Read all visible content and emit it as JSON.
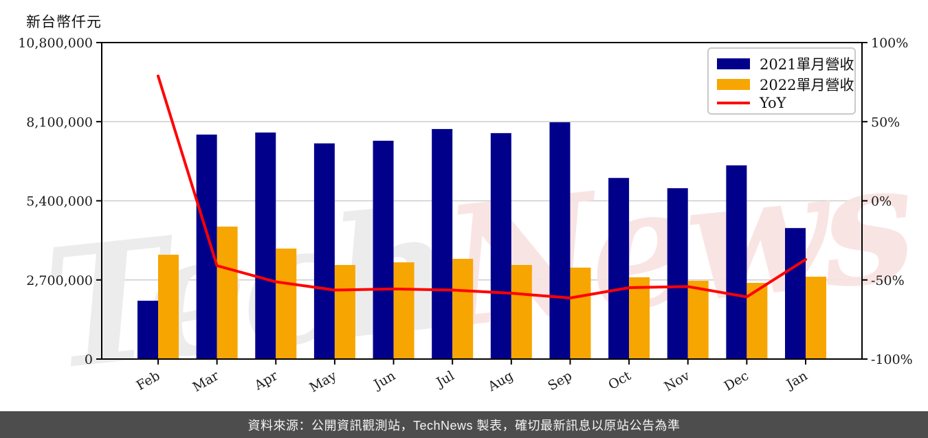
{
  "title": "新台幣仟元",
  "legend": {
    "items": [
      {
        "label": "2021單月營收",
        "color": "#00008B",
        "swatch": "rect"
      },
      {
        "label": "2022單月營收",
        "color": "#F7A500",
        "swatch": "rect"
      },
      {
        "label": "YoY",
        "color": "#FF0000",
        "swatch": "line"
      }
    ]
  },
  "watermark": {
    "part1": "Tech",
    "part2": "News",
    "color1": "#ECECEC",
    "color2": "#F9E3E3"
  },
  "footer": {
    "text": "資料來源：公開資訊觀測站，TechNews 製表，確切最新訊息以原站公告為準"
  },
  "chart_data": {
    "type": "bar+line",
    "categories": [
      "Feb",
      "Mar",
      "Apr",
      "May",
      "Jun",
      "Jul",
      "Aug",
      "Sep",
      "Oct",
      "Nov",
      "Dec",
      "Jan"
    ],
    "series": [
      {
        "name": "2021單月營收",
        "type": "bar",
        "axis": "left",
        "color": "#00008B",
        "values": [
          1990000,
          7660000,
          7730000,
          7360000,
          7450000,
          7850000,
          7710000,
          8080000,
          6180000,
          5830000,
          6610000,
          4470000
        ]
      },
      {
        "name": "2022單月營收",
        "type": "bar",
        "axis": "left",
        "color": "#F7A500",
        "values": [
          3560000,
          4520000,
          3770000,
          3210000,
          3300000,
          3420000,
          3210000,
          3120000,
          2790000,
          2670000,
          2600000,
          2810000
        ]
      },
      {
        "name": "YoY",
        "type": "line",
        "axis": "right",
        "color": "#FF0000",
        "values": [
          78.9,
          -41.0,
          -51.2,
          -56.4,
          -55.7,
          -56.4,
          -58.4,
          -61.4,
          -54.9,
          -54.2,
          -60.7,
          -37.1
        ]
      }
    ],
    "y_left": {
      "label": "新台幣仟元",
      "min": 0,
      "max": 10800000,
      "ticks": [
        0,
        2700000,
        5400000,
        8100000,
        10800000
      ],
      "tick_labels": [
        "0",
        "2,700,000",
        "5,400,000",
        "8,100,000",
        "10,800,000"
      ]
    },
    "y_right": {
      "min": -100,
      "max": 100,
      "ticks": [
        -100,
        -50,
        0,
        50,
        100
      ],
      "tick_labels": [
        "-100%",
        "-50%",
        "0%",
        "50%",
        "100%"
      ]
    },
    "grid": true,
    "legend_position": "upper right"
  }
}
